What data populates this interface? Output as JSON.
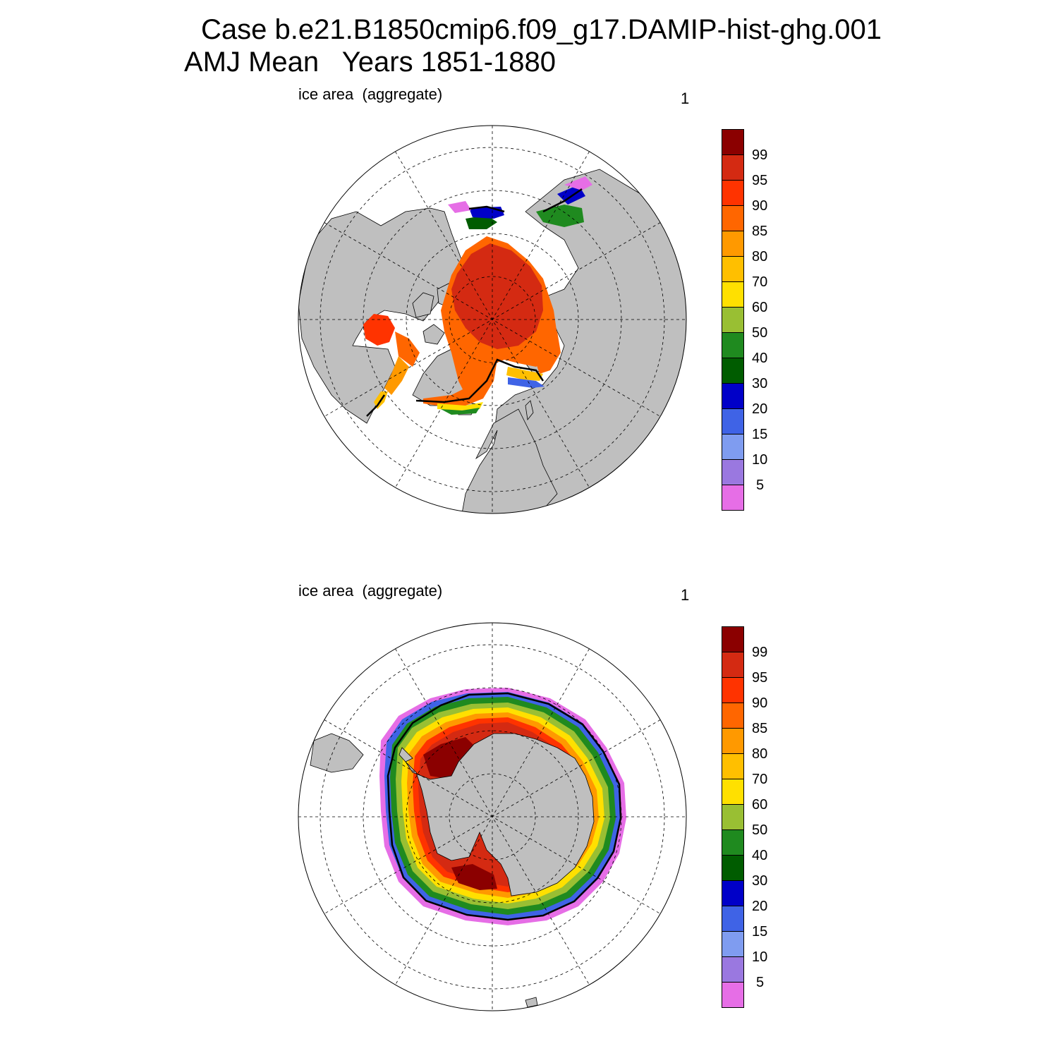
{
  "title": {
    "line1": "Case b.e21.B1850cmip6.f09_g17.DAMIP-hist-ghg.001",
    "line2": "AMJ Mean   Years 1851-1880"
  },
  "panels": [
    {
      "id": "north",
      "label": "ice area  (aggregate)",
      "number": "1",
      "hemisphere": "north"
    },
    {
      "id": "south",
      "label": "ice area  (aggregate)",
      "number": "1",
      "hemisphere": "south"
    }
  ],
  "colorbar": {
    "labels": [
      "99",
      "95",
      "90",
      "85",
      "80",
      "70",
      "60",
      "50",
      "40",
      "30",
      "20",
      "15",
      "10",
      "5"
    ],
    "colors": [
      "#8b0000",
      "#d42a12",
      "#ff3300",
      "#ff6600",
      "#ff9900",
      "#ffbf00",
      "#ffe000",
      "#99bf33",
      "#1f8a1f",
      "#005c00",
      "#0000c8",
      "#3f63e6",
      "#7f9cf0",
      "#9a78e0",
      "#e66ee6"
    ]
  },
  "colors": {
    "land": "#bfbfbf",
    "ocean": "#ffffff",
    "ice_edge_contour": "#000000",
    "grid": "#000000"
  }
}
